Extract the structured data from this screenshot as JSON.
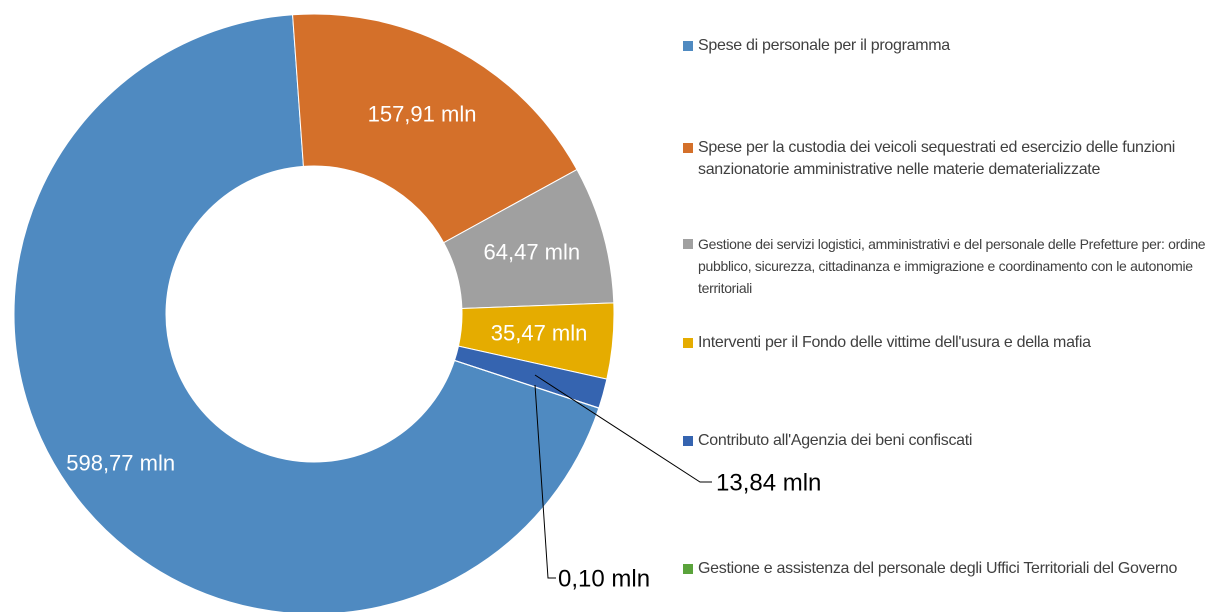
{
  "chart_data": {
    "type": "donut",
    "categories": [
      "Spese di personale per il programma",
      "Spese per la custodia dei veicoli sequestrati ed esercizio delle funzioni sanzionatorie amministrative nelle materie dematerializzate",
      "Gestione dei servizi logistici, amministrativi e del personale delle Prefetture per: ordine pubblico, sicurezza, cittadinanza e immigrazione e coordinamento con le autonomie territoriali",
      "Interventi per il Fondo delle vittime dell'usura e della mafia",
      "Contributo all'Agenzia dei beni confiscati",
      "Gestione e assistenza del personale degli Uffici Territoriali del Governo"
    ],
    "values": [
      598.77,
      157.91,
      64.47,
      35.47,
      13.84,
      0.1
    ],
    "value_labels": [
      "598,77 mln",
      "157,91 mln",
      "64,47 mln",
      "35,47 mln",
      "13,84 mln",
      "0,10 mln"
    ],
    "colors": [
      "#4f8ac1",
      "#d4702a",
      "#a0a0a0",
      "#e5ac00",
      "#3564b0",
      "#5aa33b"
    ]
  }
}
